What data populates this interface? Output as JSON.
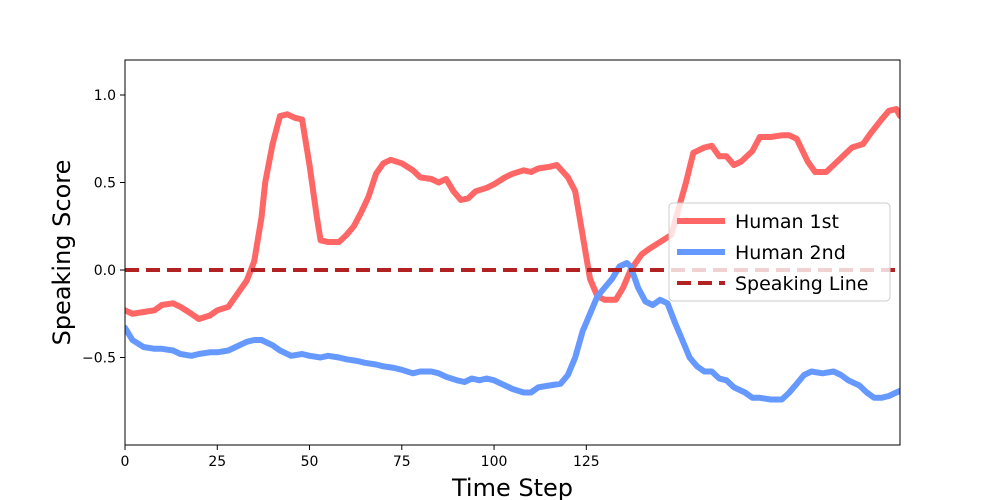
{
  "chart_data": {
    "type": "line",
    "xlabel": "Time Step",
    "ylabel": "Speaking Score",
    "xlim": [
      0,
      210
    ],
    "ylim": [
      -1.0,
      1.2
    ],
    "xticks": [
      0,
      25,
      50,
      75,
      100,
      125
    ],
    "xtick_labels": [
      "0",
      "25",
      "50",
      "75",
      "100",
      "125"
    ],
    "yticks": [
      1.0,
      0.5,
      0.0,
      -0.5
    ],
    "ytick_labels": [
      "1.0",
      "0.5",
      "0.0",
      "−0.5"
    ],
    "grid": false,
    "legend": "center-right",
    "series": [
      {
        "name": "Human 1st",
        "color": "#ff6666",
        "style": "solid",
        "points": [
          [
            0,
            -0.23
          ],
          [
            2,
            -0.25
          ],
          [
            5,
            -0.24
          ],
          [
            8,
            -0.23
          ],
          [
            10,
            -0.2
          ],
          [
            13,
            -0.19
          ],
          [
            15,
            -0.21
          ],
          [
            18,
            -0.25
          ],
          [
            20,
            -0.28
          ],
          [
            23,
            -0.26
          ],
          [
            25,
            -0.23
          ],
          [
            28,
            -0.21
          ],
          [
            30,
            -0.15
          ],
          [
            33,
            -0.06
          ],
          [
            35,
            0.05
          ],
          [
            37,
            0.3
          ],
          [
            38,
            0.5
          ],
          [
            40,
            0.72
          ],
          [
            42,
            0.88
          ],
          [
            44,
            0.89
          ],
          [
            46,
            0.87
          ],
          [
            48,
            0.86
          ],
          [
            50,
            0.6
          ],
          [
            52,
            0.3
          ],
          [
            53,
            0.17
          ],
          [
            55,
            0.16
          ],
          [
            58,
            0.16
          ],
          [
            60,
            0.2
          ],
          [
            62,
            0.25
          ],
          [
            64,
            0.33
          ],
          [
            66,
            0.42
          ],
          [
            68,
            0.55
          ],
          [
            70,
            0.61
          ],
          [
            72,
            0.63
          ],
          [
            75,
            0.61
          ],
          [
            78,
            0.57
          ],
          [
            80,
            0.53
          ],
          [
            83,
            0.52
          ],
          [
            85,
            0.5
          ],
          [
            87,
            0.52
          ],
          [
            89,
            0.45
          ],
          [
            91,
            0.4
          ],
          [
            93,
            0.41
          ],
          [
            95,
            0.45
          ],
          [
            98,
            0.47
          ],
          [
            100,
            0.49
          ],
          [
            103,
            0.53
          ],
          [
            105,
            0.55
          ],
          [
            108,
            0.57
          ],
          [
            110,
            0.56
          ],
          [
            112,
            0.58
          ],
          [
            115,
            0.59
          ],
          [
            117,
            0.6
          ],
          [
            120,
            0.53
          ],
          [
            122,
            0.45
          ],
          [
            124,
            0.2
          ],
          [
            126,
            -0.05
          ],
          [
            128,
            -0.15
          ],
          [
            130,
            -0.17
          ],
          [
            133,
            -0.17
          ],
          [
            135,
            -0.1
          ],
          [
            137,
            0.0
          ],
          [
            140,
            0.09
          ],
          [
            142,
            0.12
          ],
          [
            145,
            0.16
          ],
          [
            148,
            0.2
          ],
          [
            150,
            0.35
          ],
          [
            152,
            0.5
          ],
          [
            154,
            0.67
          ],
          [
            157,
            0.7
          ],
          [
            159,
            0.71
          ],
          [
            161,
            0.65
          ],
          [
            163,
            0.65
          ],
          [
            165,
            0.6
          ],
          [
            167,
            0.62
          ],
          [
            170,
            0.68
          ],
          [
            172,
            0.76
          ],
          [
            175,
            0.76
          ],
          [
            178,
            0.77
          ],
          [
            180,
            0.77
          ],
          [
            182,
            0.75
          ],
          [
            185,
            0.62
          ],
          [
            187,
            0.56
          ],
          [
            190,
            0.56
          ],
          [
            193,
            0.62
          ],
          [
            195,
            0.66
          ],
          [
            197,
            0.7
          ],
          [
            200,
            0.72
          ],
          [
            202,
            0.78
          ],
          [
            205,
            0.86
          ],
          [
            207,
            0.91
          ],
          [
            209,
            0.92
          ],
          [
            210,
            0.88
          ]
        ]
      },
      {
        "name": "Human 2nd",
        "color": "#6699ff",
        "style": "solid",
        "points": [
          [
            0,
            -0.33
          ],
          [
            2,
            -0.4
          ],
          [
            5,
            -0.44
          ],
          [
            8,
            -0.45
          ],
          [
            10,
            -0.45
          ],
          [
            13,
            -0.46
          ],
          [
            15,
            -0.48
          ],
          [
            18,
            -0.49
          ],
          [
            20,
            -0.48
          ],
          [
            23,
            -0.47
          ],
          [
            25,
            -0.47
          ],
          [
            28,
            -0.46
          ],
          [
            30,
            -0.44
          ],
          [
            33,
            -0.41
          ],
          [
            35,
            -0.4
          ],
          [
            37,
            -0.4
          ],
          [
            40,
            -0.43
          ],
          [
            42,
            -0.46
          ],
          [
            45,
            -0.49
          ],
          [
            48,
            -0.48
          ],
          [
            50,
            -0.49
          ],
          [
            53,
            -0.5
          ],
          [
            55,
            -0.49
          ],
          [
            58,
            -0.5
          ],
          [
            60,
            -0.51
          ],
          [
            63,
            -0.52
          ],
          [
            65,
            -0.53
          ],
          [
            68,
            -0.54
          ],
          [
            70,
            -0.55
          ],
          [
            73,
            -0.56
          ],
          [
            75,
            -0.57
          ],
          [
            78,
            -0.59
          ],
          [
            80,
            -0.58
          ],
          [
            83,
            -0.58
          ],
          [
            85,
            -0.59
          ],
          [
            87,
            -0.61
          ],
          [
            90,
            -0.63
          ],
          [
            92,
            -0.64
          ],
          [
            94,
            -0.62
          ],
          [
            96,
            -0.63
          ],
          [
            98,
            -0.62
          ],
          [
            100,
            -0.63
          ],
          [
            103,
            -0.66
          ],
          [
            105,
            -0.68
          ],
          [
            108,
            -0.7
          ],
          [
            110,
            -0.7
          ],
          [
            112,
            -0.67
          ],
          [
            115,
            -0.66
          ],
          [
            118,
            -0.65
          ],
          [
            120,
            -0.6
          ],
          [
            122,
            -0.5
          ],
          [
            124,
            -0.35
          ],
          [
            126,
            -0.25
          ],
          [
            128,
            -0.15
          ],
          [
            130,
            -0.1
          ],
          [
            132,
            -0.05
          ],
          [
            134,
            0.02
          ],
          [
            136,
            0.04
          ],
          [
            137,
            0.02
          ],
          [
            139,
            -0.1
          ],
          [
            141,
            -0.18
          ],
          [
            143,
            -0.2
          ],
          [
            145,
            -0.17
          ],
          [
            147,
            -0.19
          ],
          [
            149,
            -0.3
          ],
          [
            151,
            -0.4
          ],
          [
            153,
            -0.5
          ],
          [
            155,
            -0.55
          ],
          [
            157,
            -0.58
          ],
          [
            159,
            -0.58
          ],
          [
            161,
            -0.62
          ],
          [
            163,
            -0.63
          ],
          [
            165,
            -0.67
          ],
          [
            168,
            -0.7
          ],
          [
            170,
            -0.73
          ],
          [
            172,
            -0.73
          ],
          [
            175,
            -0.74
          ],
          [
            178,
            -0.74
          ],
          [
            180,
            -0.7
          ],
          [
            182,
            -0.65
          ],
          [
            184,
            -0.6
          ],
          [
            186,
            -0.58
          ],
          [
            189,
            -0.59
          ],
          [
            192,
            -0.58
          ],
          [
            194,
            -0.6
          ],
          [
            196,
            -0.63
          ],
          [
            199,
            -0.66
          ],
          [
            201,
            -0.7
          ],
          [
            203,
            -0.73
          ],
          [
            205,
            -0.73
          ],
          [
            207,
            -0.72
          ],
          [
            209,
            -0.7
          ],
          [
            210,
            -0.69
          ]
        ]
      },
      {
        "name": "Speaking Line",
        "color": "#b22222",
        "style": "dashed",
        "points": [
          [
            0,
            0.0
          ],
          [
            210,
            0.0
          ]
        ]
      }
    ]
  }
}
